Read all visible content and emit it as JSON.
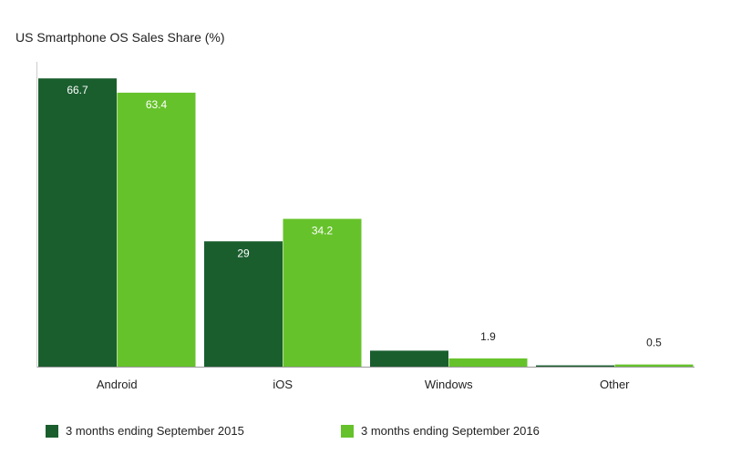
{
  "colors": {
    "series_2015": "#1a5e2e",
    "series_2016": "#66c22b",
    "axis": "#999999"
  },
  "chart_data": {
    "type": "bar",
    "title": "US Smartphone OS Sales Share (%)",
    "categories": [
      "Android",
      "iOS",
      "Windows",
      "Other"
    ],
    "series": [
      {
        "name": "3 months ending September 2015",
        "values": [
          66.7,
          29,
          3.7,
          0.3
        ],
        "labels": [
          "66.7",
          "29",
          "",
          ""
        ]
      },
      {
        "name": "3 months ending September 2016",
        "values": [
          63.4,
          34.2,
          1.9,
          0.5
        ],
        "labels": [
          "63.4",
          "34.2",
          "1.9",
          "0.5"
        ]
      }
    ],
    "ylim": [
      0,
      70
    ],
    "grid": false,
    "legend_position": "bottom"
  }
}
